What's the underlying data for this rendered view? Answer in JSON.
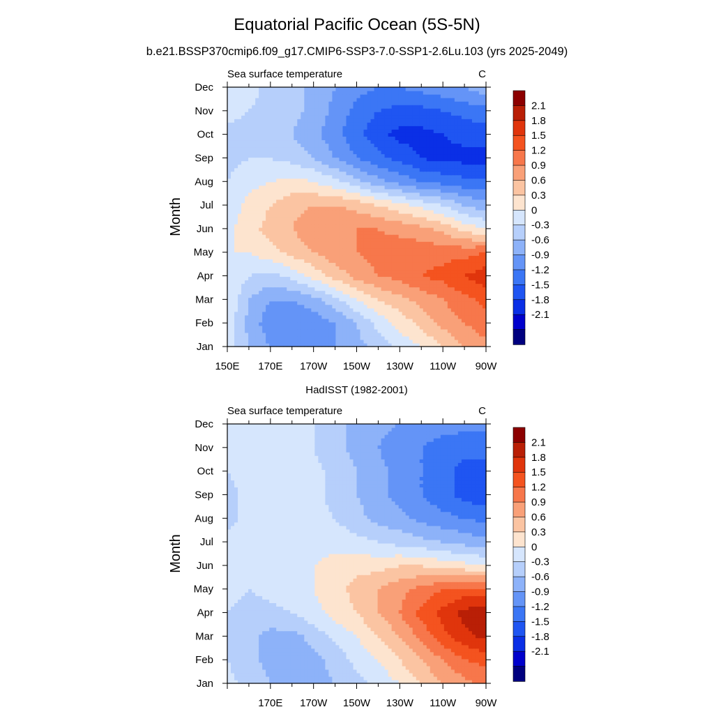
{
  "title": "Equatorial Pacific Ocean (5S-5N)",
  "subtitle": "b.e21.BSSP370cmip6.f09_g17.CMIP6-SSP3-7.0-SSP1-2.6Lu.103 (yrs 2025-2049)",
  "colors": [
    "#00007f",
    "#0000cc",
    "#0a2fe6",
    "#1f55f2",
    "#3b76f5",
    "#6494f7",
    "#8db2f9",
    "#b6cffb",
    "#d6e6fd",
    "#fde4cf",
    "#fbc4a2",
    "#f9a078",
    "#f7774b",
    "#f4531f",
    "#e0350c",
    "#b91f06",
    "#8c0000"
  ],
  "chart_data": [
    {
      "type": "heatmap",
      "panel_label": "",
      "left_string": "Sea surface temperature",
      "right_string": "C",
      "xlabel": "",
      "ylabel": "Month",
      "x_ticks": [
        "150E",
        "170E",
        "170W",
        "150W",
        "130W",
        "110W",
        "90W"
      ],
      "y_ticks": [
        "Jan",
        "Feb",
        "Mar",
        "Apr",
        "May",
        "Jun",
        "Jul",
        "Aug",
        "Sep",
        "Oct",
        "Nov",
        "Dec"
      ],
      "x_lon": [
        150,
        160,
        170,
        180,
        190,
        200,
        210,
        220,
        230,
        240,
        250,
        260,
        270
      ],
      "levels": [
        -2.1,
        -1.8,
        -1.5,
        -1.2,
        -0.9,
        -0.6,
        -0.3,
        0,
        0.3,
        0.6,
        0.9,
        1.2,
        1.5,
        1.8,
        2.1
      ],
      "colorbar_labels": [
        "2.1",
        "1.8",
        "1.5",
        "1.2",
        "0.9",
        "0.6",
        "0.3",
        "0",
        "-0.3",
        "-0.6",
        "-0.9",
        "-1.2",
        "-1.5",
        "-1.8",
        "-2.1"
      ],
      "values": [
        [
          0.2,
          -0.3,
          -0.6,
          -0.7,
          -0.7,
          -0.6,
          -0.4,
          -0.2,
          0.1,
          0.3,
          0.6,
          0.9,
          1.1
        ],
        [
          0.2,
          -0.4,
          -0.8,
          -0.9,
          -0.8,
          -0.6,
          -0.3,
          0.1,
          0.4,
          0.7,
          1.0,
          1.2,
          1.4
        ],
        [
          0.3,
          -0.3,
          -0.6,
          -0.6,
          -0.4,
          -0.1,
          0.3,
          0.6,
          0.8,
          1.0,
          1.2,
          1.4,
          1.6
        ],
        [
          0.3,
          0.0,
          -0.1,
          0.1,
          0.4,
          0.7,
          1.0,
          1.2,
          1.3,
          1.5,
          1.6,
          1.8,
          2.0
        ],
        [
          0.3,
          0.3,
          0.5,
          0.7,
          0.9,
          1.1,
          1.2,
          1.3,
          1.4,
          1.4,
          1.4,
          1.4,
          1.5
        ],
        [
          0.2,
          0.5,
          0.7,
          0.9,
          1.1,
          1.2,
          1.2,
          1.2,
          1.1,
          1.0,
          0.8,
          0.5,
          0.3
        ],
        [
          0.1,
          0.4,
          0.6,
          0.8,
          0.9,
          0.9,
          0.8,
          0.6,
          0.4,
          0.2,
          0.0,
          -0.3,
          -0.5
        ],
        [
          0.0,
          0.2,
          0.3,
          0.4,
          0.3,
          0.1,
          -0.2,
          -0.5,
          -0.7,
          -0.9,
          -1.0,
          -1.1,
          -1.1
        ],
        [
          -0.1,
          0.0,
          0.0,
          -0.1,
          -0.3,
          -0.6,
          -0.9,
          -1.1,
          -1.3,
          -1.5,
          -1.6,
          -1.6,
          -1.6
        ],
        [
          -0.1,
          -0.1,
          -0.2,
          -0.3,
          -0.5,
          -0.8,
          -1.1,
          -1.4,
          -1.6,
          -1.6,
          -1.5,
          -1.4,
          -1.4
        ],
        [
          0.1,
          0.0,
          -0.1,
          -0.2,
          -0.4,
          -0.7,
          -1.0,
          -1.2,
          -1.3,
          -1.3,
          -1.2,
          -1.1,
          -1.0
        ],
        [
          0.2,
          0.1,
          -0.1,
          -0.2,
          -0.4,
          -0.6,
          -0.8,
          -0.9,
          -0.9,
          -0.8,
          -0.7,
          -0.6,
          -0.4
        ]
      ]
    },
    {
      "type": "heatmap",
      "panel_label": "HadISST (1982-2001)",
      "left_string": "Sea surface temperature",
      "right_string": "C",
      "xlabel": "",
      "ylabel": "Month",
      "x_ticks": [
        "",
        "170E",
        "170W",
        "150W",
        "130W",
        "110W",
        "90W"
      ],
      "y_ticks": [
        "Jan",
        "Feb",
        "Mar",
        "Apr",
        "May",
        "Jun",
        "Jul",
        "Aug",
        "Sep",
        "Oct",
        "Nov",
        "Dec"
      ],
      "x_lon": [
        150,
        160,
        170,
        180,
        190,
        200,
        210,
        220,
        230,
        240,
        250,
        260,
        270
      ],
      "levels": [
        -2.1,
        -1.8,
        -1.5,
        -1.2,
        -0.9,
        -0.6,
        -0.3,
        0,
        0.3,
        0.6,
        0.9,
        1.2,
        1.5,
        1.8,
        2.1
      ],
      "colorbar_labels": [
        "2.1",
        "1.8",
        "1.5",
        "1.2",
        "0.9",
        "0.6",
        "0.3",
        "0",
        "-0.3",
        "-0.6",
        "-0.9",
        "-1.2",
        "-1.5",
        "-1.8",
        "-2.1"
      ],
      "values": [
        [
          0.1,
          -0.1,
          -0.3,
          -0.4,
          -0.4,
          -0.3,
          -0.1,
          0.1,
          0.3,
          0.6,
          0.9,
          1.1,
          1.3
        ],
        [
          0.0,
          -0.2,
          -0.4,
          -0.5,
          -0.4,
          -0.2,
          0.1,
          0.3,
          0.6,
          0.9,
          1.2,
          1.5,
          1.6
        ],
        [
          0.0,
          -0.2,
          -0.4,
          -0.4,
          -0.2,
          0.1,
          0.3,
          0.6,
          0.9,
          1.3,
          1.7,
          2.0,
          2.2
        ],
        [
          0.0,
          -0.1,
          -0.1,
          0.0,
          0.2,
          0.4,
          0.6,
          0.9,
          1.2,
          1.6,
          1.9,
          2.2,
          2.3
        ],
        [
          0.1,
          0.0,
          0.1,
          0.2,
          0.3,
          0.5,
          0.7,
          0.9,
          1.1,
          1.3,
          1.5,
          1.6,
          1.6
        ],
        [
          0.1,
          0.1,
          0.2,
          0.2,
          0.3,
          0.4,
          0.5,
          0.5,
          0.6,
          0.6,
          0.5,
          0.4,
          0.3
        ],
        [
          0.1,
          0.1,
          0.2,
          0.2,
          0.2,
          0.2,
          0.1,
          0.0,
          -0.1,
          -0.2,
          -0.3,
          -0.4,
          -0.5
        ],
        [
          -0.1,
          0.1,
          0.2,
          0.2,
          0.1,
          0.0,
          -0.2,
          -0.4,
          -0.5,
          -0.7,
          -0.8,
          -0.9,
          -1.0
        ],
        [
          -0.1,
          0.1,
          0.3,
          0.2,
          0.1,
          -0.1,
          -0.3,
          -0.5,
          -0.7,
          -0.9,
          -1.1,
          -1.3,
          -1.4
        ],
        [
          0.0,
          0.1,
          0.2,
          0.2,
          0.1,
          -0.1,
          -0.3,
          -0.5,
          -0.7,
          -0.9,
          -1.1,
          -1.3,
          -1.3
        ],
        [
          0.1,
          0.1,
          0.2,
          0.2,
          0.0,
          -0.2,
          -0.4,
          -0.6,
          -0.8,
          -0.9,
          -1.0,
          -1.1,
          -1.1
        ],
        [
          0.1,
          0.1,
          0.2,
          0.1,
          0.0,
          -0.2,
          -0.4,
          -0.5,
          -0.6,
          -0.8,
          -0.8,
          -0.8,
          -0.8
        ]
      ]
    }
  ]
}
